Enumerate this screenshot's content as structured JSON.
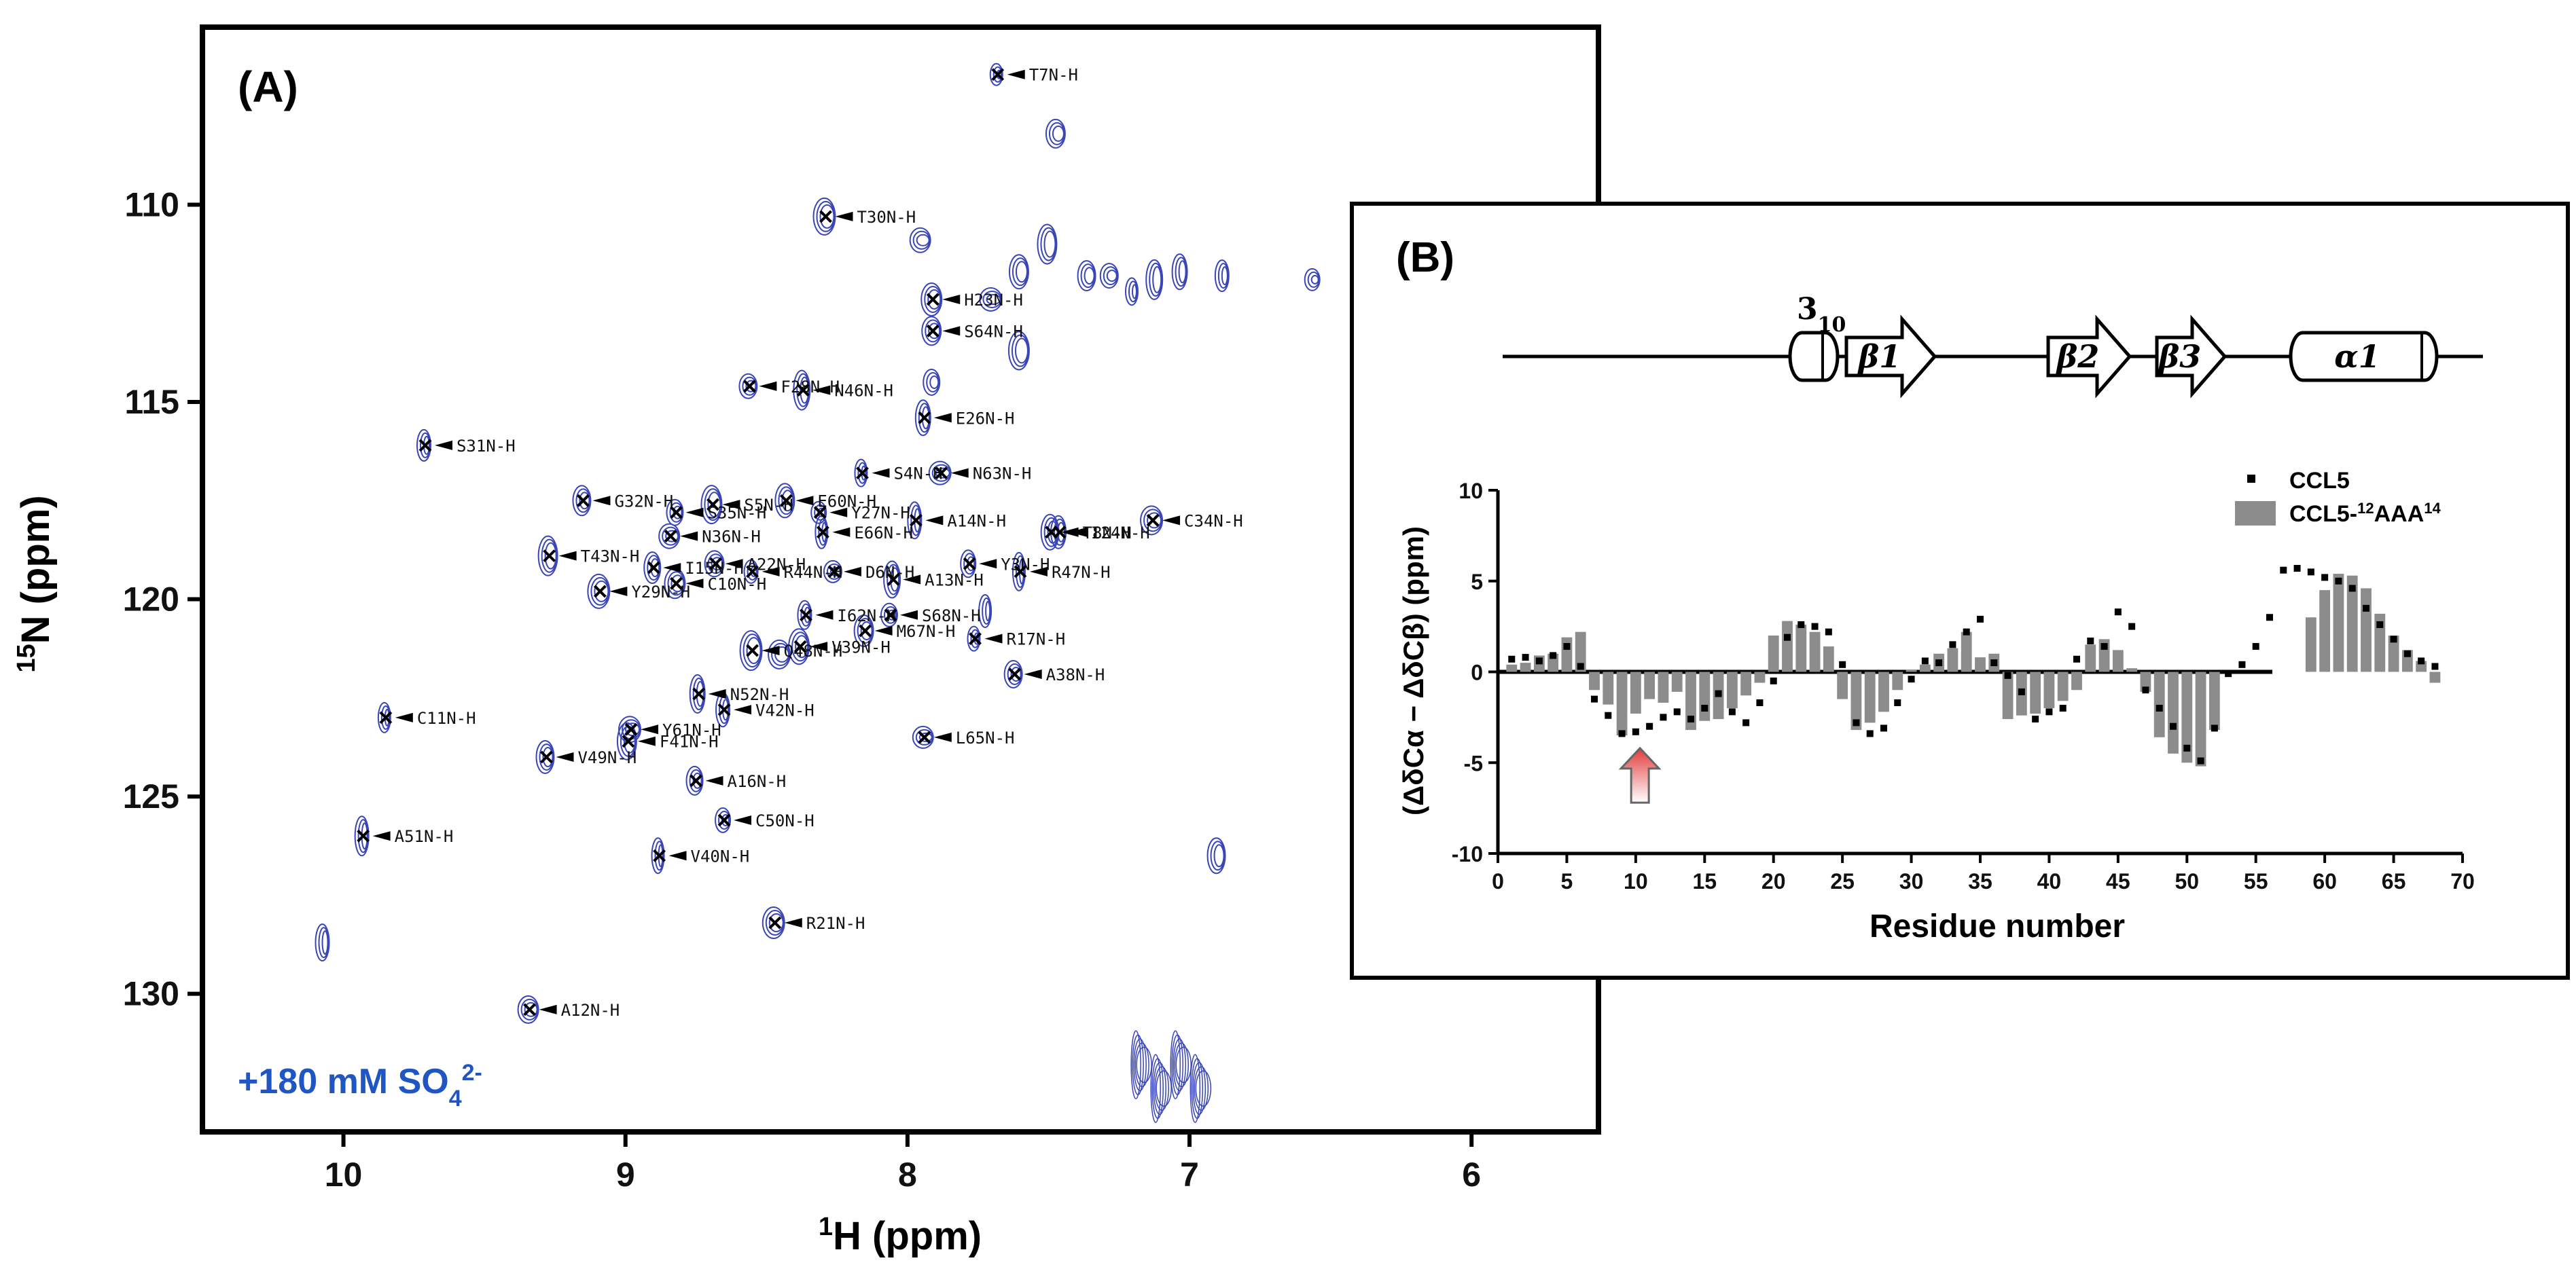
{
  "chart_data": [
    {
      "panel": "(A)",
      "type": "scatter",
      "subtype": "2D 1H-15N HSQC spectrum",
      "title": "",
      "condition_label": {
        "prefix": "+180 mM SO",
        "sub": "4",
        "sup": "2-"
      },
      "xlabel": {
        "sup": "1",
        "text": "H (ppm)"
      },
      "ylabel": {
        "sup": "15",
        "text": "N (ppm)"
      },
      "xlim": [
        10.5,
        5.55
      ],
      "ylim": [
        133.5,
        105.5
      ],
      "x_reversed": true,
      "y_reversed": true,
      "x_ticks": [
        10,
        9,
        8,
        7,
        6
      ],
      "y_ticks": [
        110,
        115,
        120,
        125,
        130
      ],
      "contour_color": "#3a46b8",
      "assigned_peaks": [
        {
          "label": "T7N-H",
          "x": 7.68,
          "y": 106.7
        },
        {
          "label": "T30N-H",
          "x": 8.29,
          "y": 110.3
        },
        {
          "label": "H23N-H",
          "x": 7.91,
          "y": 112.4
        },
        {
          "label": "S64N-H",
          "x": 7.91,
          "y": 113.2
        },
        {
          "label": "F28N-H",
          "x": 8.56,
          "y": 114.6
        },
        {
          "label": "N46N-H",
          "x": 8.37,
          "y": 114.7
        },
        {
          "label": "E26N-H",
          "x": 7.94,
          "y": 115.4
        },
        {
          "label": "S31N-H",
          "x": 9.71,
          "y": 116.1
        },
        {
          "label": "S4N-H",
          "x": 8.16,
          "y": 116.8
        },
        {
          "label": "N63N-H",
          "x": 7.88,
          "y": 116.8
        },
        {
          "label": "S5N-H",
          "x": 8.69,
          "y": 117.6
        },
        {
          "label": "E60N-H",
          "x": 8.43,
          "y": 117.5
        },
        {
          "label": "G32N-H",
          "x": 9.15,
          "y": 117.5
        },
        {
          "label": "S35N-H",
          "x": 8.82,
          "y": 117.8
        },
        {
          "label": "Y27N-H",
          "x": 8.31,
          "y": 117.8
        },
        {
          "label": "A14N-H",
          "x": 7.97,
          "y": 118.0
        },
        {
          "label": "E66N-H",
          "x": 8.3,
          "y": 118.3
        },
        {
          "label": "C34N-H",
          "x": 7.13,
          "y": 118.0
        },
        {
          "label": "N36N-H",
          "x": 8.84,
          "y": 118.4
        },
        {
          "label": "T43N-H",
          "x": 9.27,
          "y": 118.9
        },
        {
          "label": "T8N-H",
          "x": 7.49,
          "y": 118.3
        },
        {
          "label": "I15N-H",
          "x": 8.9,
          "y": 119.2
        },
        {
          "label": "Y3N-H",
          "x": 7.78,
          "y": 119.1
        },
        {
          "label": "R44N-H",
          "x": 8.55,
          "y": 119.3
        },
        {
          "label": "R47N-H",
          "x": 7.6,
          "y": 119.3
        },
        {
          "label": "Y29N-H",
          "x": 9.09,
          "y": 119.8
        },
        {
          "label": "C10N-H",
          "x": 8.82,
          "y": 119.6
        },
        {
          "label": "A22N-H",
          "x": 8.68,
          "y": 119.1
        },
        {
          "label": "D6N-H",
          "x": 8.26,
          "y": 119.3
        },
        {
          "label": "A13N-H",
          "x": 8.05,
          "y": 119.5
        },
        {
          "label": "I24N-H",
          "x": 7.46,
          "y": 118.3
        },
        {
          "label": "I62N-H",
          "x": 8.36,
          "y": 120.4
        },
        {
          "label": "R17N-H",
          "x": 7.76,
          "y": 121.0
        },
        {
          "label": "Q48N-H",
          "x": 8.55,
          "y": 121.3
        },
        {
          "label": "V39N-H",
          "x": 8.38,
          "y": 121.2
        },
        {
          "label": "M67N-H",
          "x": 8.15,
          "y": 120.8
        },
        {
          "label": "A38N-H",
          "x": 7.62,
          "y": 121.9
        },
        {
          "label": "S68N-H",
          "x": 8.06,
          "y": 120.4
        },
        {
          "label": "N52N-H",
          "x": 8.74,
          "y": 122.4
        },
        {
          "label": "V42N-H",
          "x": 8.65,
          "y": 122.8
        },
        {
          "label": "C11N-H",
          "x": 9.85,
          "y": 123.0
        },
        {
          "label": "Y61N-H",
          "x": 8.98,
          "y": 123.3
        },
        {
          "label": "L65N-H",
          "x": 7.94,
          "y": 123.5
        },
        {
          "label": "F41N-H",
          "x": 8.99,
          "y": 123.6
        },
        {
          "label": "V49N-H",
          "x": 9.28,
          "y": 124.0
        },
        {
          "label": "A16N-H",
          "x": 8.75,
          "y": 124.6
        },
        {
          "label": "C50N-H",
          "x": 8.65,
          "y": 125.6
        },
        {
          "label": "A51N-H",
          "x": 9.93,
          "y": 126.0
        },
        {
          "label": "V40N-H",
          "x": 8.88,
          "y": 126.5
        },
        {
          "label": "R21N-H",
          "x": 8.47,
          "y": 128.2
        },
        {
          "label": "A12N-H",
          "x": 9.34,
          "y": 130.4
        }
      ],
      "unassigned_peaks": [
        {
          "x": 7.47,
          "y": 108.2
        },
        {
          "x": 7.28,
          "y": 111.8
        },
        {
          "x": 7.12,
          "y": 111.9
        },
        {
          "x": 7.03,
          "y": 111.7
        },
        {
          "x": 6.88,
          "y": 111.8
        },
        {
          "x": 7.2,
          "y": 112.2
        },
        {
          "x": 7.7,
          "y": 112.4
        },
        {
          "x": 7.6,
          "y": 113.7
        },
        {
          "x": 7.6,
          "y": 111.7
        },
        {
          "x": 7.36,
          "y": 111.8
        },
        {
          "x": 7.91,
          "y": 114.5
        },
        {
          "x": 6.56,
          "y": 111.9
        },
        {
          "x": 10.07,
          "y": 128.7
        },
        {
          "x": 7.72,
          "y": 120.3
        },
        {
          "x": 8.45,
          "y": 121.4
        },
        {
          "x": 7.95,
          "y": 110.9
        },
        {
          "x": 7.5,
          "y": 111.0
        },
        {
          "x": 6.9,
          "y": 126.5
        }
      ]
    },
    {
      "panel": "(B)",
      "type": "bar",
      "title": "",
      "xlabel": "Residue number",
      "ylabel": "(ΔδCα − ΔδCβ) (ppm)",
      "xlim": [
        0,
        70
      ],
      "ylim": [
        -10,
        10
      ],
      "x_ticks": [
        0,
        5,
        10,
        15,
        20,
        25,
        30,
        35,
        40,
        45,
        50,
        55,
        60,
        65,
        70
      ],
      "y_ticks": [
        -10,
        -5,
        0,
        5,
        10
      ],
      "legend": {
        "location": "top-right",
        "entries": [
          "CCL5",
          "CCL5-12AAA14"
        ]
      },
      "legend_labels": {
        "ccl5": "CCL5",
        "mutant_prefix": "CCL5-",
        "mutant_sup1": "12",
        "mutant_mid": "AAA",
        "mutant_sup2": "14"
      },
      "annotation": {
        "type": "arrow",
        "color": "#e34a4a",
        "points_to_residue": 11
      },
      "secondary_structure": [
        {
          "type": "helix",
          "label_main": "3",
          "label_sub": "10",
          "start": 8,
          "end": 10
        },
        {
          "type": "strand",
          "label": "β1",
          "start": 12,
          "end": 18
        },
        {
          "type": "strand",
          "label": "β2",
          "start": 36,
          "end": 41
        },
        {
          "type": "strand",
          "label": "β3",
          "start": 43,
          "end": 47
        },
        {
          "type": "helix",
          "label": "α1",
          "start": 55,
          "end": 66
        }
      ],
      "series": [
        {
          "name": "CCL5",
          "style": "points",
          "color": "#000000",
          "x": [
            1,
            2,
            3,
            4,
            5,
            6,
            7,
            8,
            9,
            10,
            11,
            12,
            13,
            14,
            15,
            16,
            17,
            18,
            19,
            20,
            21,
            22,
            23,
            24,
            25,
            26,
            27,
            28,
            29,
            30,
            31,
            32,
            33,
            34,
            35,
            36,
            37,
            38,
            39,
            40,
            41,
            42,
            43,
            44,
            45,
            46,
            47,
            48,
            49,
            50,
            51,
            52,
            53,
            54,
            55,
            56,
            57,
            58,
            59,
            60,
            61,
            62,
            63,
            64,
            65,
            66,
            67,
            68
          ],
          "values": [
            0.7,
            0.8,
            0.6,
            0.9,
            1.4,
            0.3,
            -1.5,
            -2.4,
            -3.4,
            -3.3,
            -3.0,
            -2.5,
            -2.2,
            -2.6,
            -2.0,
            -1.2,
            -2.2,
            -2.8,
            -1.7,
            -0.5,
            1.9,
            2.6,
            2.5,
            2.2,
            0.4,
            -2.8,
            -3.4,
            -3.1,
            -1.7,
            -0.4,
            0.6,
            0.5,
            1.5,
            2.2,
            2.9,
            0.5,
            -0.2,
            -1.1,
            -2.6,
            -2.2,
            -2.0,
            0.7,
            1.7,
            1.4,
            3.3,
            2.5,
            -1.0,
            -2.0,
            -3.0,
            -4.2,
            -4.9,
            -3.1,
            -0.1,
            0.4,
            1.4,
            3.0,
            5.6,
            5.7,
            5.5,
            5.2,
            5.0,
            4.6,
            3.5,
            2.6,
            1.8,
            1.0,
            0.6,
            0.3
          ]
        },
        {
          "name": "CCL5-12AAA14",
          "style": "bars",
          "color": "#8c8c8c",
          "x": [
            1,
            2,
            3,
            4,
            5,
            6,
            7,
            8,
            9,
            10,
            11,
            12,
            13,
            14,
            15,
            16,
            17,
            18,
            19,
            20,
            21,
            22,
            23,
            24,
            25,
            26,
            27,
            28,
            29,
            30,
            31,
            32,
            33,
            34,
            35,
            36,
            37,
            38,
            39,
            40,
            41,
            42,
            43,
            44,
            45,
            46,
            47,
            48,
            49,
            50,
            51,
            52,
            53,
            54,
            55,
            56,
            57,
            58,
            59,
            60,
            61,
            62,
            63,
            64,
            65,
            66,
            67,
            68
          ],
          "values": [
            0.4,
            0.5,
            0.9,
            1.0,
            1.9,
            2.2,
            -1.0,
            -1.8,
            -3.5,
            -2.3,
            -1.5,
            -1.7,
            -1.1,
            -3.2,
            -2.7,
            -2.6,
            -2.0,
            -1.3,
            -0.6,
            2.0,
            2.8,
            2.6,
            2.2,
            1.4,
            -1.5,
            -3.2,
            -2.8,
            -2.2,
            -1.0,
            0.1,
            0.4,
            1.0,
            1.3,
            2.2,
            0.8,
            1.0,
            -2.6,
            -2.4,
            -2.3,
            -2.0,
            -1.6,
            -1.0,
            1.5,
            1.8,
            1.2,
            0.2,
            -1.1,
            -3.6,
            -4.5,
            -5.0,
            -5.2,
            -3.2,
            0,
            0,
            0,
            0,
            0,
            0,
            3.0,
            4.5,
            5.4,
            5.3,
            4.6,
            3.2,
            2.0,
            1.2,
            0.6,
            -0.6
          ]
        }
      ]
    }
  ]
}
